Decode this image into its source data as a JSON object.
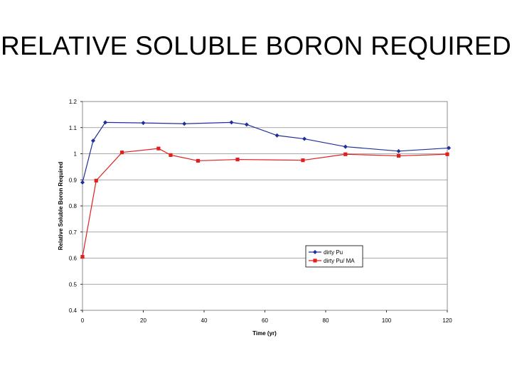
{
  "slide": {
    "title": "RELATIVE SOLUBLE BORON REQUIRED"
  },
  "chart_data": {
    "type": "line",
    "title": "",
    "xlabel": "Time (yr)",
    "ylabel": "Relative Soluble Boron Required",
    "xlim": [
      0,
      120
    ],
    "ylim": [
      0.4,
      1.2
    ],
    "xticks": [
      0,
      20,
      40,
      60,
      80,
      100,
      120
    ],
    "yticks": [
      0.4,
      0.5,
      0.6,
      0.7,
      0.8,
      0.9,
      1,
      1.1,
      1.2
    ],
    "grid": "horizontal",
    "legend_position": "right",
    "series": [
      {
        "name": "dirty Pu",
        "color": "#1f2f99",
        "marker": "diamond",
        "x": [
          0,
          3.5,
          7.5,
          20,
          33.5,
          49,
          54,
          64,
          73,
          86.5,
          104,
          120.5
        ],
        "y": [
          0.89,
          1.05,
          1.12,
          1.118,
          1.115,
          1.12,
          1.112,
          1.07,
          1.057,
          1.027,
          1.01,
          1.022
        ]
      },
      {
        "name": "dirty Pu/ MA",
        "color": "#e01f1f",
        "marker": "square",
        "x": [
          0,
          4.5,
          13,
          25,
          29,
          38,
          51,
          72.5,
          86.5,
          104,
          120
        ],
        "y": [
          0.605,
          0.897,
          1.005,
          1.02,
          0.995,
          0.973,
          0.978,
          0.975,
          0.998,
          0.992,
          0.998
        ]
      }
    ]
  }
}
